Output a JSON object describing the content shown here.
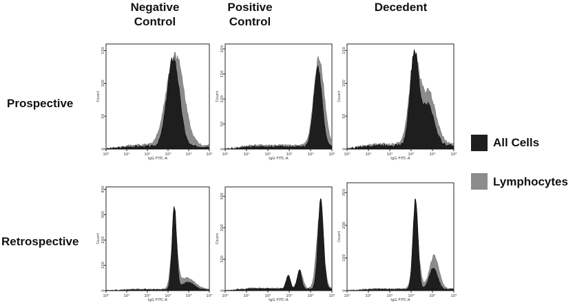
{
  "column_headers": [
    "Negative\nControl",
    "Positive\nControl",
    "Decedent"
  ],
  "row_headers": [
    "Prospective",
    "Retrospective"
  ],
  "legend": [
    {
      "label": "All Cells",
      "color": "#1e1e1e"
    },
    {
      "label": "Lymphocytes",
      "color": "#8c8c8c"
    }
  ],
  "colors": {
    "all_cells": "#1e1e1e",
    "lymphocytes": "#8c8c8c",
    "axis": "#222222"
  },
  "chart_data": [
    {
      "type": "area",
      "row": "Prospective",
      "column": "Negative\nControl",
      "xlabel": "IgG FITC-A",
      "ylabel": "Count",
      "log_x": true,
      "xlim": [
        1,
        100000
      ],
      "ylim": [
        0,
        160
      ],
      "x_ticks": [
        "10⁰",
        "10¹",
        "10²",
        "10³",
        "10⁴",
        "10⁵"
      ],
      "y_ticks": [
        0,
        50,
        100,
        150
      ],
      "series": [
        {
          "name": "All Cells",
          "peaks": [
            {
              "center": 1800,
              "height": 135,
              "width": 0.3
            }
          ],
          "baseline": 4
        },
        {
          "name": "Lymphocytes",
          "peaks": [
            {
              "center": 2200,
              "height": 140,
              "width": 0.42
            }
          ],
          "baseline": 6
        }
      ]
    },
    {
      "type": "area",
      "row": "Prospective",
      "column": "Positive\nControl",
      "xlabel": "IgG FITC-A",
      "ylabel": "Count",
      "log_x": true,
      "xlim": [
        1,
        100000
      ],
      "ylim": [
        0,
        210
      ],
      "x_ticks": [
        "10⁰",
        "10¹",
        "10²",
        "10³",
        "10⁴",
        "10⁵"
      ],
      "y_ticks": [
        0,
        50,
        100,
        150,
        200
      ],
      "series": [
        {
          "name": "All Cells",
          "peaks": [
            {
              "center": 22000,
              "height": 155,
              "width": 0.2
            }
          ],
          "baseline": 5
        },
        {
          "name": "Lymphocytes",
          "peaks": [
            {
              "center": 25000,
              "height": 175,
              "width": 0.24
            }
          ],
          "baseline": 8
        }
      ]
    },
    {
      "type": "area",
      "row": "Prospective",
      "column": "Decedent",
      "xlabel": "IgG FITC-A",
      "ylabel": "Count",
      "log_x": true,
      "xlim": [
        1,
        100000
      ],
      "ylim": [
        0,
        160
      ],
      "x_ticks": [
        "10⁰",
        "10¹",
        "10²",
        "10³",
        "10⁴",
        "10⁵"
      ],
      "y_ticks": [
        0,
        50,
        100,
        150
      ],
      "series": [
        {
          "name": "All Cells",
          "peaks": [
            {
              "center": 1400,
              "height": 138,
              "width": 0.2
            },
            {
              "center": 6000,
              "height": 62,
              "width": 0.3
            }
          ],
          "baseline": 6
        },
        {
          "name": "Lymphocytes",
          "peaks": [
            {
              "center": 1400,
              "height": 120,
              "width": 0.24
            },
            {
              "center": 6500,
              "height": 78,
              "width": 0.34
            }
          ],
          "baseline": 8
        }
      ]
    },
    {
      "type": "area",
      "row": "Retrospective",
      "column": "Negative\nControl",
      "xlabel": "IgG FITC-A",
      "ylabel": "Count",
      "log_x": true,
      "xlim": [
        1,
        100000
      ],
      "ylim": [
        0,
        410
      ],
      "x_ticks": [
        "10⁰",
        "10¹",
        "10²",
        "10³",
        "10⁴",
        "10⁵"
      ],
      "y_ticks": [
        0,
        100,
        200,
        300,
        400
      ],
      "series": [
        {
          "name": "All Cells",
          "peaks": [
            {
              "center": 2000,
              "height": 335,
              "width": 0.11
            },
            {
              "center": 9000,
              "height": 30,
              "width": 0.3
            }
          ],
          "baseline": 4
        },
        {
          "name": "Lymphocytes",
          "peaks": [
            {
              "center": 2000,
              "height": 240,
              "width": 0.14
            },
            {
              "center": 8000,
              "height": 45,
              "width": 0.38
            }
          ],
          "baseline": 6
        }
      ]
    },
    {
      "type": "area",
      "row": "Retrospective",
      "column": "Positive\nControl",
      "xlabel": "IgG FITC-A",
      "ylabel": "Count",
      "log_x": true,
      "xlim": [
        1,
        100000
      ],
      "ylim": [
        0,
        330
      ],
      "x_ticks": [
        "10⁰",
        "10¹",
        "10²",
        "10³",
        "10⁴",
        "10⁵"
      ],
      "y_ticks": [
        0,
        100,
        200,
        300
      ],
      "series": [
        {
          "name": "All Cells",
          "peaks": [
            {
              "center": 30000,
              "height": 280,
              "width": 0.13
            },
            {
              "center": 900,
              "height": 45,
              "width": 0.1
            },
            {
              "center": 3000,
              "height": 60,
              "width": 0.1
            }
          ],
          "baseline": 6
        },
        {
          "name": "Lymphocytes",
          "peaks": [
            {
              "center": 28000,
              "height": 240,
              "width": 0.16
            },
            {
              "center": 3200,
              "height": 55,
              "width": 0.13
            }
          ],
          "baseline": 8
        }
      ]
    },
    {
      "type": "area",
      "row": "Retrospective",
      "column": "Decedent",
      "xlabel": "IgG FITC-A",
      "ylabel": "Count",
      "log_x": true,
      "xlim": [
        1,
        100000
      ],
      "ylim": [
        0,
        330
      ],
      "x_ticks": [
        "10⁰",
        "10¹",
        "10²",
        "10³",
        "10⁴",
        "10⁵"
      ],
      "y_ticks": [
        0,
        100,
        200,
        300
      ],
      "series": [
        {
          "name": "All Cells",
          "peaks": [
            {
              "center": 1600,
              "height": 280,
              "width": 0.12
            },
            {
              "center": 11000,
              "height": 65,
              "width": 0.2
            }
          ],
          "baseline": 4
        },
        {
          "name": "Lymphocytes",
          "peaks": [
            {
              "center": 1700,
              "height": 150,
              "width": 0.16
            },
            {
              "center": 12000,
              "height": 100,
              "width": 0.22
            }
          ],
          "baseline": 6
        }
      ]
    }
  ]
}
